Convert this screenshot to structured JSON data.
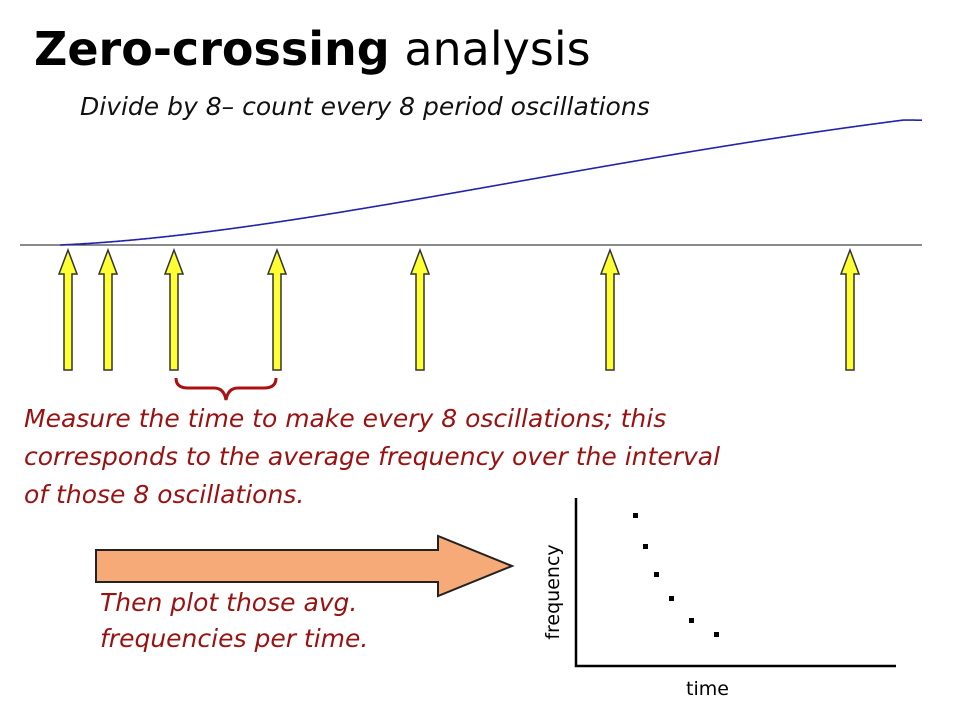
{
  "title": {
    "bold": "Zero-crossing",
    "rest": " analysis"
  },
  "subtitle": "Divide by 8– count every 8 period oscillations",
  "measure_text": [
    "Measure the time to make every 8 oscillations; this",
    "corresponds to the average frequency over the interval",
    "of those 8 oscillations."
  ],
  "plot_text": [
    "Then plot those avg.",
    "frequencies per time."
  ],
  "axis": {
    "ylabel": "frequency",
    "xlabel": "time"
  },
  "colors": {
    "wave": "#2222aa",
    "marker_fill": "#ffff33",
    "marker_stroke": "#333333",
    "big_arrow_fill": "#f5aa77",
    "text_red": "#991111"
  }
}
